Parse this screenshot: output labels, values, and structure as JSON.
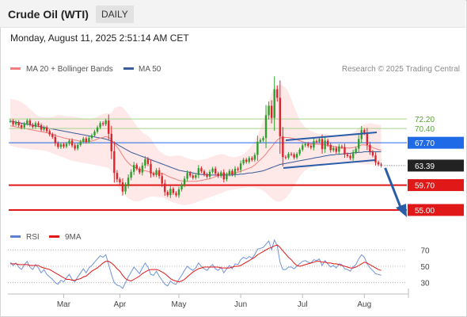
{
  "header": {
    "instrument": "Crude Oil (WTI)",
    "timeframe": "DAILY"
  },
  "datetime": "Monday, August 11, 2025 2:51:14 AM CET",
  "legend": {
    "ma20": "MA 20 + Bollinger Bands",
    "ma50": "MA 50",
    "credit": "Research © 2025 Trading Central"
  },
  "rsi_legend": {
    "rsi": "RSI",
    "ma9": "9MA"
  },
  "colors": {
    "ma20": "#f08080",
    "ma50": "#3a5a9a",
    "up": "#2e9e2e",
    "down": "#d9262c",
    "resistance": "#1f6ae6",
    "support": "#e01818",
    "current": "#222222",
    "arrow": "#2a5ca8",
    "band": "#fde0e0"
  },
  "chart_data": [
    {
      "type": "candlestick",
      "x_axis": {
        "type": "date",
        "tick_labels": [
          "Mar",
          "Apr",
          "May",
          "Jun",
          "Jul",
          "Aug"
        ]
      },
      "ylim": [
        52,
        80
      ],
      "levels": [
        {
          "value": 72.2,
          "label": "72.20",
          "kind": "minor-resistance"
        },
        {
          "value": 70.4,
          "label": "70.40",
          "kind": "minor-resistance"
        },
        {
          "value": 67.7,
          "label": "67.70",
          "kind": "pivot"
        },
        {
          "value": 63.39,
          "label": "63.39",
          "kind": "last-price"
        },
        {
          "value": 59.7,
          "label": "59.70",
          "kind": "support"
        },
        {
          "value": 55.0,
          "label": "55.00",
          "kind": "support"
        }
      ],
      "close": [
        71.8,
        71.2,
        71.6,
        71.0,
        70.6,
        71.3,
        71.9,
        71.1,
        70.7,
        71.4,
        71.0,
        70.2,
        70.6,
        69.9,
        69.3,
        68.8,
        67.6,
        66.9,
        67.4,
        67.0,
        67.5,
        68.1,
        67.2,
        66.6,
        67.3,
        67.9,
        68.5,
        67.9,
        68.6,
        69.1,
        69.8,
        70.6,
        71.4,
        71.2,
        71.9,
        69.4,
        66.1,
        62.0,
        60.8,
        60.2,
        58.5,
        59.7,
        61.1,
        62.2,
        63.5,
        62.8,
        62.1,
        63.4,
        64.6,
        63.7,
        61.9,
        61.6,
        62.5,
        61.4,
        60.0,
        58.4,
        57.8,
        59.0,
        58.2,
        57.8,
        58.9,
        59.8,
        60.9,
        62.0,
        61.5,
        61.1,
        61.6,
        62.9,
        62.3,
        61.7,
        61.3,
        62.2,
        62.8,
        61.9,
        61.4,
        62.1,
        60.8,
        61.7,
        62.4,
        61.7,
        62.8,
        62.6,
        63.8,
        64.5,
        64.1,
        64.8,
        64.5,
        65.4,
        67.9,
        68.2,
        68.6,
        72.9,
        74.7,
        72.4,
        77.8,
        76.2,
        68.9,
        65.0,
        64.9,
        65.6,
        65.5,
        64.9,
        65.6,
        66.4,
        67.2,
        67.5,
        67.1,
        66.8,
        68.0,
        67.9,
        68.4,
        66.5,
        68.1,
        67.3,
        66.3,
        66.7,
        66.0,
        67.0,
        66.9,
        65.5,
        65.2,
        64.8,
        65.9,
        66.6,
        68.4,
        70.1,
        69.5,
        67.3,
        66.0,
        65.3,
        64.0,
        63.6,
        63.39
      ],
      "ma_20": [
        70.9,
        70.8,
        70.7,
        70.6,
        70.5,
        70.4,
        70.3,
        70.2,
        70.1,
        70.0,
        69.9,
        69.8,
        69.7,
        69.6,
        69.4,
        69.3,
        69.1,
        68.9,
        68.8,
        68.6,
        68.5,
        68.4,
        68.3,
        68.2,
        68.1,
        68.0,
        68.0,
        67.9,
        68.0,
        68.0,
        68.2,
        68.4,
        68.6,
        68.7,
        68.9,
        68.7,
        68.3,
        67.6,
        66.9,
        66.2,
        65.3,
        64.5,
        63.9,
        63.4,
        63.1,
        62.9,
        62.6,
        62.5,
        62.4,
        62.3,
        62.1,
        61.9,
        61.9,
        61.9,
        61.9,
        61.7,
        61.4,
        61.2,
        61.0,
        60.8,
        60.6,
        60.5,
        60.4,
        60.4,
        60.4,
        60.4,
        60.4,
        60.5,
        60.6,
        60.7,
        60.8,
        60.9,
        61.1,
        61.3,
        61.5,
        61.7,
        61.8,
        61.8,
        61.9,
        61.9,
        62.0,
        62.1,
        62.3,
        62.5,
        62.7,
        62.9,
        63.1,
        63.5,
        64.0,
        64.5,
        65.0,
        65.6,
        66.3,
        66.9,
        67.6,
        68.2,
        68.6,
        68.7,
        68.7,
        68.7,
        68.6,
        68.5,
        68.3,
        68.1,
        67.9,
        67.7,
        67.6,
        67.5,
        67.5,
        67.4,
        67.4,
        67.4,
        67.3,
        67.2,
        67.1,
        67.0,
        66.9,
        66.8,
        66.7,
        66.7,
        66.7,
        66.7,
        66.8,
        66.9,
        67.1,
        67.3,
        67.3,
        67.2,
        67.0,
        66.8,
        66.6,
        66.4,
        66.3
      ],
      "ma_50": [
        71.8,
        71.7,
        71.6,
        71.5,
        71.4,
        71.3,
        71.2,
        71.1,
        71.0,
        70.9,
        70.8,
        70.7,
        70.6,
        70.5,
        70.4,
        70.3,
        70.2,
        70.1,
        70.0,
        69.9,
        69.8,
        69.7,
        69.6,
        69.5,
        69.4,
        69.3,
        69.2,
        69.1,
        69.0,
        68.9,
        68.8,
        68.7,
        68.6,
        68.5,
        68.4,
        68.2,
        68.0,
        67.7,
        67.4,
        67.1,
        66.8,
        66.5,
        66.2,
        65.9,
        65.7,
        65.5,
        65.3,
        65.1,
        64.9,
        64.7,
        64.5,
        64.3,
        64.1,
        63.9,
        63.7,
        63.5,
        63.3,
        63.1,
        62.9,
        62.7,
        62.5,
        62.4,
        62.3,
        62.2,
        62.1,
        62.0,
        61.9,
        61.8,
        61.7,
        61.7,
        61.7,
        61.6,
        61.6,
        61.6,
        61.6,
        61.6,
        61.6,
        61.6,
        61.6,
        61.6,
        61.7,
        61.7,
        61.8,
        61.8,
        61.9,
        62.0,
        62.0,
        62.1,
        62.2,
        62.3,
        62.4,
        62.6,
        62.8,
        63.0,
        63.2,
        63.4,
        63.6,
        63.7,
        63.8,
        63.9,
        64.0,
        64.1,
        64.2,
        64.3,
        64.4,
        64.5,
        64.6,
        64.7,
        64.8,
        64.9,
        65.0,
        65.1,
        65.2,
        65.3,
        65.4,
        65.4,
        65.5,
        65.5,
        65.6,
        65.6,
        65.7,
        65.7,
        65.8,
        65.8,
        65.9,
        65.9,
        66.0,
        66.0,
        66.0,
        66.0,
        66.0,
        66.0,
        66.0
      ],
      "bollinger_upper": [
        76.0,
        75.9,
        75.8,
        75.6,
        75.4,
        75.0,
        74.6,
        74.1,
        73.6,
        73.1,
        72.8,
        72.6,
        72.5,
        72.5,
        72.5,
        72.6,
        72.8,
        73.0,
        72.9,
        72.8,
        72.7,
        72.7,
        72.7,
        72.6,
        72.5,
        72.4,
        72.3,
        72.3,
        72.3,
        72.3,
        72.4,
        72.6,
        72.9,
        73.1,
        73.3,
        73.2,
        73.3,
        74.2,
        74.5,
        74.6,
        74.4,
        73.8,
        73.1,
        72.4,
        71.6,
        70.8,
        70.2,
        69.7,
        69.3,
        69.0,
        68.5,
        67.7,
        66.9,
        66.2,
        65.8,
        65.4,
        65.2,
        65.1,
        65.2,
        65.3,
        65.3,
        65.2,
        65.0,
        64.8,
        64.6,
        64.5,
        64.4,
        64.4,
        64.5,
        64.6,
        64.7,
        64.9,
        65.1,
        65.3,
        65.4,
        65.6,
        65.5,
        65.3,
        65.1,
        65.0,
        65.0,
        65.1,
        65.3,
        65.6,
        66.0,
        66.6,
        67.3,
        68.1,
        69.0,
        70.3,
        71.8,
        73.6,
        75.5,
        77.0,
        78.3,
        78.7,
        78.7,
        78.5,
        78.1,
        77.2,
        76.0,
        74.5,
        73.3,
        72.0,
        71.2,
        70.6,
        70.2,
        69.9,
        69.7,
        69.5,
        69.4,
        69.4,
        69.4,
        69.3,
        69.2,
        69.1,
        69.0,
        69.0,
        69.0,
        69.1,
        69.2,
        69.4,
        69.6,
        70.0,
        70.4,
        70.9,
        71.2,
        71.3,
        71.4,
        71.3,
        71.2,
        71.1,
        71.0
      ],
      "bollinger_lower": [
        67.2,
        67.0,
        66.9,
        66.8,
        66.7,
        66.6,
        66.6,
        66.5,
        66.4,
        66.4,
        66.3,
        66.3,
        66.2,
        66.1,
        65.9,
        65.7,
        65.5,
        65.3,
        65.1,
        64.9,
        64.7,
        64.5,
        64.3,
        64.2,
        64.1,
        64.0,
        63.9,
        63.8,
        63.7,
        63.6,
        63.5,
        63.4,
        63.3,
        63.2,
        63.1,
        62.9,
        62.3,
        60.9,
        59.6,
        58.8,
        58.2,
        57.6,
        57.2,
        56.9,
        56.7,
        56.6,
        56.7,
        56.9,
        57.2,
        57.4,
        57.5,
        57.6,
        57.5,
        57.4,
        57.4,
        57.2,
        56.9,
        56.6,
        56.4,
        56.3,
        56.1,
        56.0,
        55.9,
        56.0,
        56.1,
        56.2,
        56.4,
        56.6,
        56.8,
        57.0,
        57.2,
        57.4,
        57.6,
        57.8,
        58.0,
        58.2,
        58.4,
        58.6,
        58.7,
        58.8,
        58.9,
        59.0,
        59.1,
        59.2,
        59.2,
        59.3,
        59.3,
        59.2,
        59.1,
        58.9,
        58.6,
        58.2,
        57.7,
        57.2,
        56.8,
        56.6,
        56.6,
        56.8,
        57.2,
        57.8,
        58.6,
        59.6,
        60.4,
        61.3,
        62.0,
        62.5,
        62.8,
        63.0,
        63.2,
        63.4,
        63.6,
        63.7,
        63.8,
        63.9,
        63.9,
        64.0,
        64.0,
        64.1,
        64.1,
        64.1,
        64.1,
        64.1,
        64.0,
        63.9,
        63.8,
        63.7,
        63.6,
        63.6,
        63.6,
        63.6,
        63.6,
        63.6,
        63.6
      ]
    },
    {
      "type": "line",
      "name": "RSI",
      "ylim": [
        20,
        80
      ],
      "y_ticks": [
        30,
        50,
        70
      ],
      "x_axis": {
        "type": "date",
        "tick_labels": [
          "Mar",
          "Apr",
          "May",
          "Jun",
          "Jul",
          "Aug"
        ]
      },
      "series": [
        {
          "name": "RSI",
          "values": [
            55,
            51,
            54,
            49,
            46,
            52,
            56,
            49,
            46,
            52,
            48,
            42,
            46,
            40,
            37,
            34,
            30,
            28,
            33,
            31,
            36,
            40,
            34,
            31,
            37,
            42,
            47,
            42,
            48,
            51,
            55,
            59,
            63,
            61,
            64,
            52,
            40,
            30,
            27,
            26,
            23,
            30,
            37,
            43,
            49,
            45,
            41,
            48,
            54,
            49,
            40,
            39,
            44,
            38,
            33,
            28,
            26,
            32,
            29,
            28,
            34,
            39,
            45,
            50,
            47,
            45,
            48,
            54,
            50,
            47,
            45,
            49,
            52,
            47,
            45,
            49,
            42,
            47,
            51,
            47,
            53,
            52,
            58,
            61,
            59,
            62,
            60,
            64,
            71,
            72,
            73,
            77,
            81,
            70,
            82,
            75,
            55,
            46,
            46,
            49,
            49,
            47,
            50,
            53,
            56,
            57,
            55,
            54,
            58,
            57,
            59,
            51,
            57,
            53,
            49,
            51,
            48,
            53,
            52,
            47,
            46,
            44,
            49,
            52,
            59,
            64,
            61,
            53,
            48,
            45,
            41,
            40,
            39
          ]
        },
        {
          "name": "9MA",
          "values": [
            53,
            53,
            53,
            52,
            52,
            52,
            52,
            51,
            51,
            51,
            51,
            49,
            48,
            47,
            46,
            44,
            42,
            40,
            38,
            36,
            34,
            34,
            33,
            33,
            34,
            35,
            37,
            38,
            41,
            44,
            46,
            48,
            51,
            54,
            56,
            56,
            54,
            51,
            47,
            44,
            39,
            35,
            33,
            32,
            34,
            36,
            38,
            41,
            43,
            45,
            46,
            46,
            46,
            45,
            43,
            41,
            38,
            35,
            33,
            32,
            31,
            32,
            34,
            37,
            40,
            43,
            45,
            47,
            48,
            49,
            49,
            49,
            49,
            49,
            49,
            48,
            48,
            48,
            48,
            49,
            50,
            50,
            51,
            53,
            55,
            57,
            59,
            61,
            64,
            66,
            68,
            70,
            72,
            73,
            75,
            76,
            73,
            69,
            65,
            61,
            58,
            54,
            51,
            50,
            51,
            52,
            53,
            54,
            55,
            56,
            56,
            55,
            55,
            54,
            54,
            53,
            53,
            52,
            51,
            50,
            49,
            48,
            48,
            49,
            51,
            53,
            55,
            54,
            52,
            50,
            48,
            46,
            45
          ]
        }
      ]
    }
  ]
}
